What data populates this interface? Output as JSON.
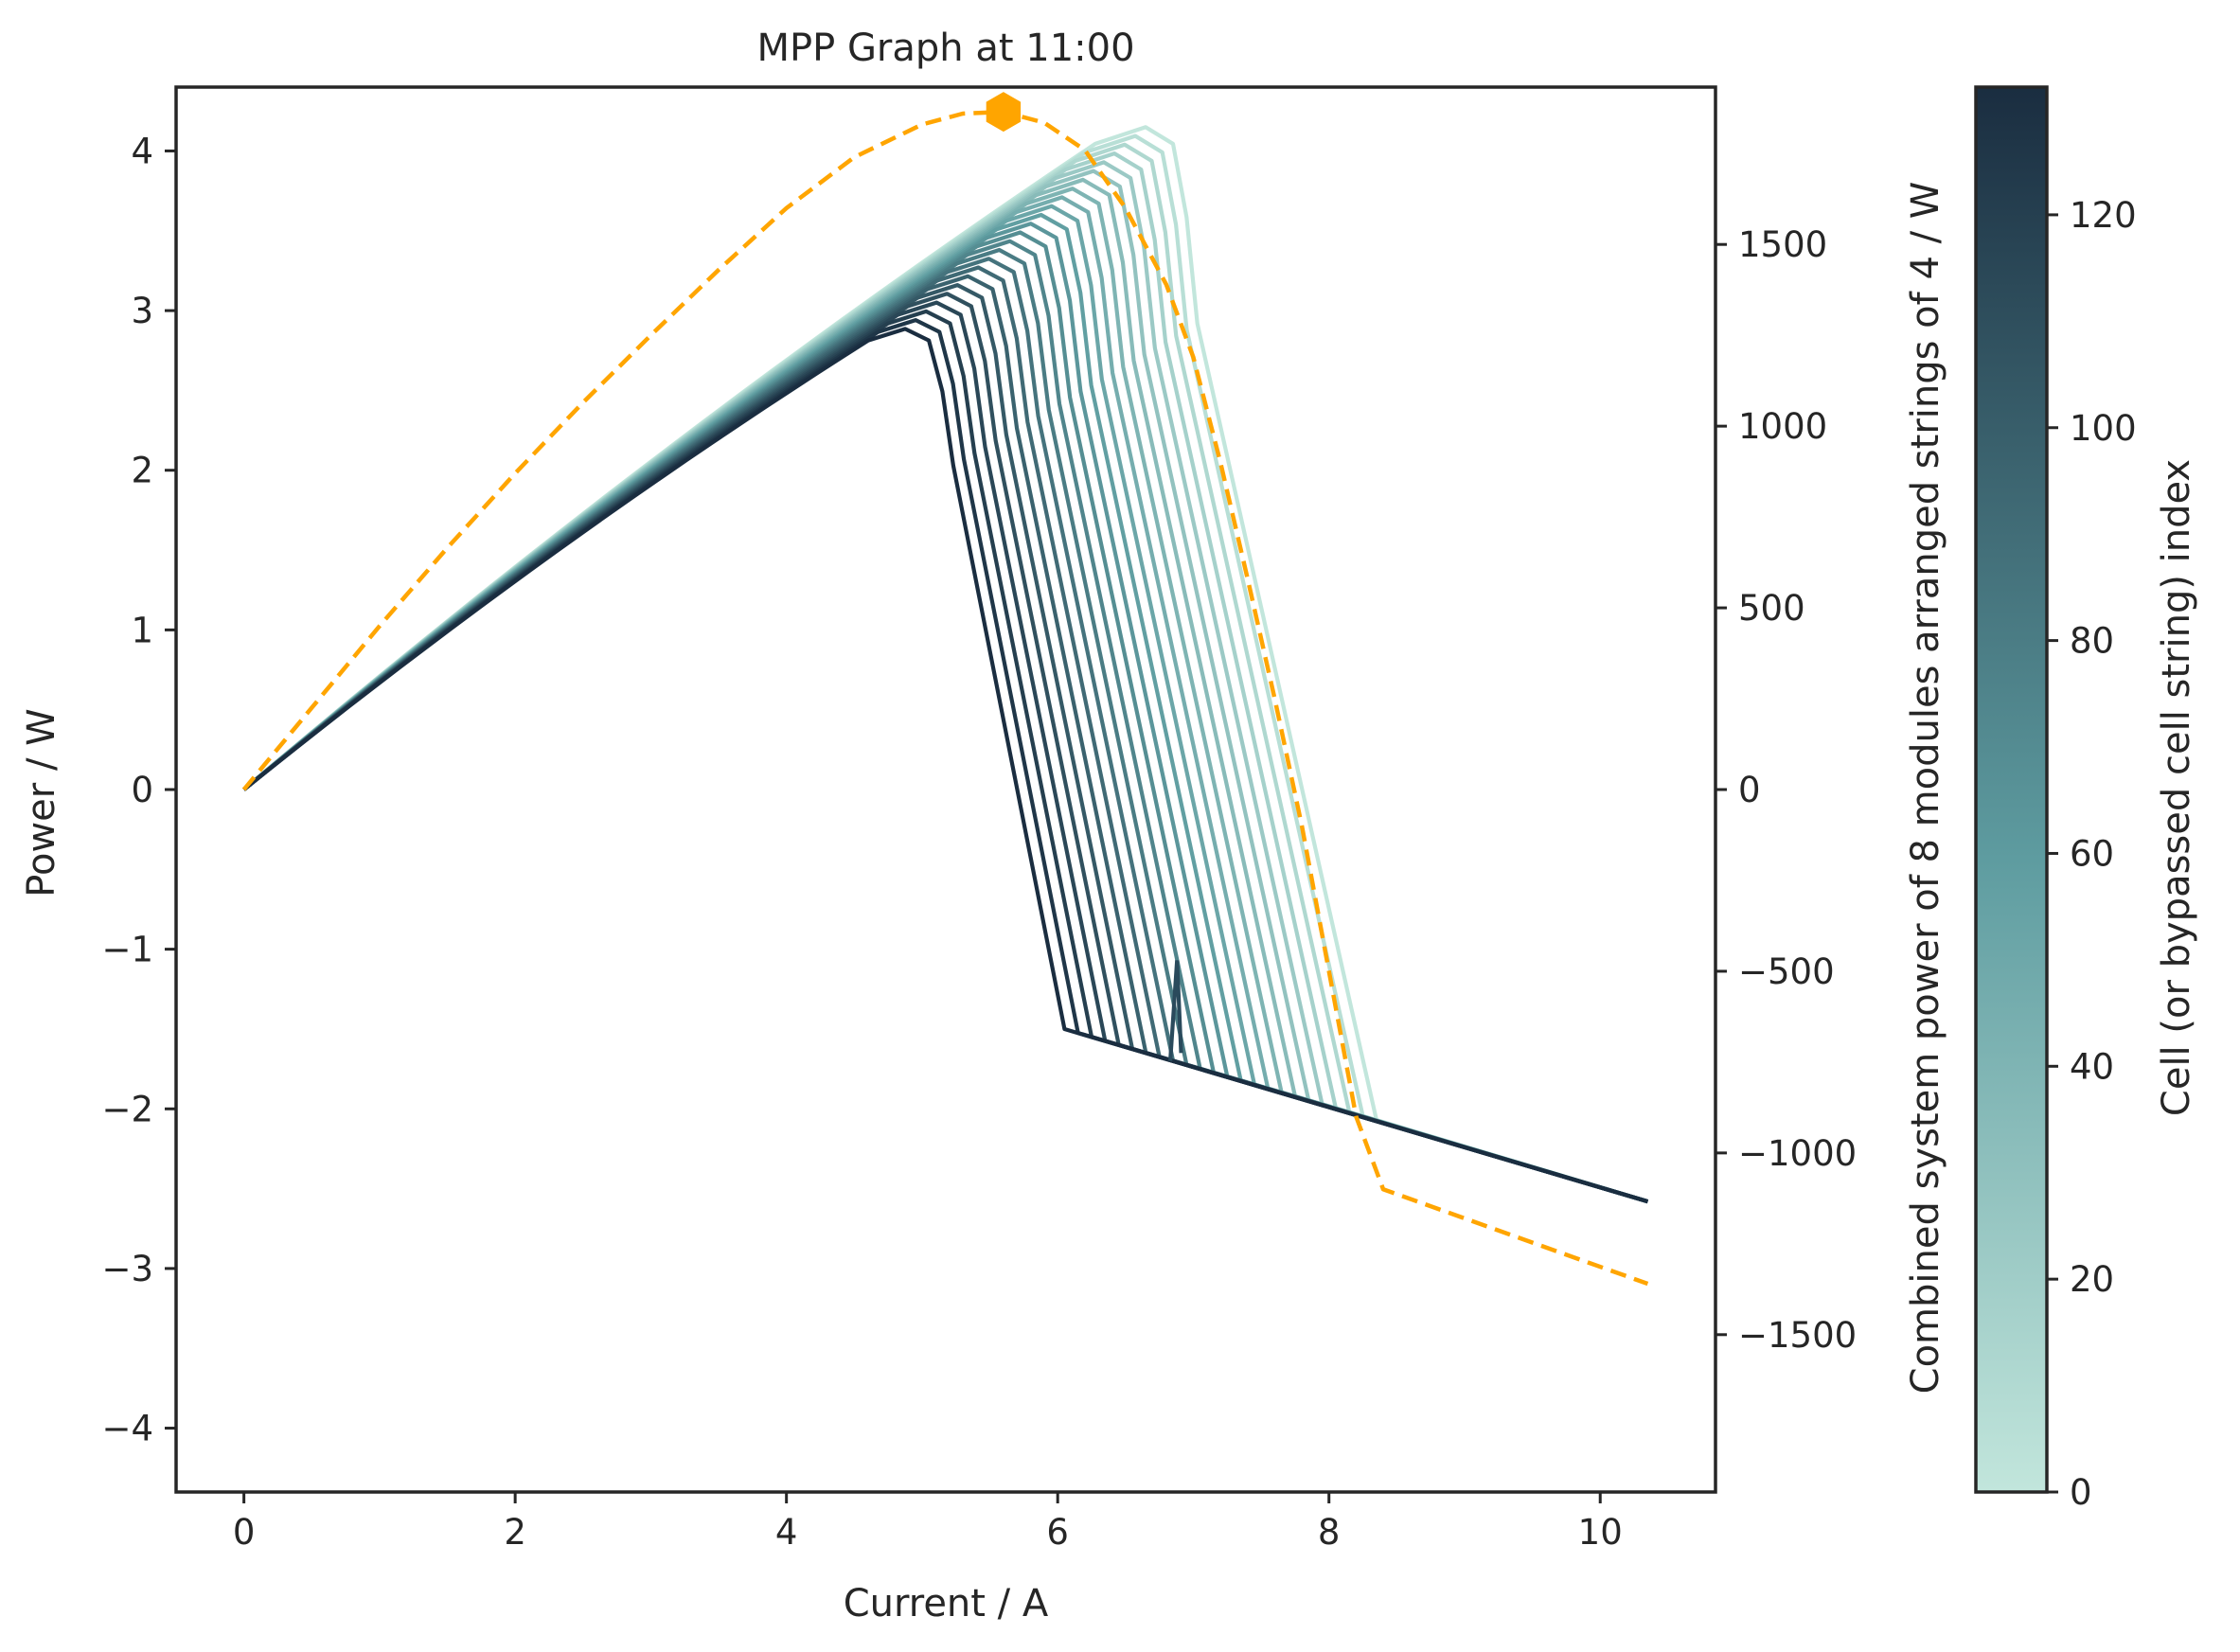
{
  "chart_data": {
    "type": "line",
    "title": "MPP Graph at 11:00",
    "xlabel": "Current / A",
    "ylabel": "Power / W",
    "y2label": "Combined system power of 8 modules arranged strings of 4 / W",
    "colorbar_label": "Cell (or bypassed cell string) index",
    "xlim": [
      -0.5,
      10.85
    ],
    "ylim": [
      -4.4,
      4.4
    ],
    "y2lim": [
      -1933,
      1933
    ],
    "colorbar_lim": [
      0,
      132
    ],
    "xticks": [
      0,
      2,
      4,
      6,
      8,
      10
    ],
    "yticks": [
      -4,
      -3,
      -2,
      -1,
      0,
      1,
      2,
      3,
      4
    ],
    "y2ticks": [
      -1500,
      -1000,
      -500,
      0,
      500,
      1000,
      1500
    ],
    "colorbar_ticks": [
      0,
      20,
      40,
      60,
      80,
      100,
      120
    ],
    "xtick_labels": [
      "0",
      "2",
      "4",
      "6",
      "8",
      "10"
    ],
    "ytick_labels": [
      "−4",
      "−3",
      "−2",
      "−1",
      "0",
      "1",
      "2",
      "3",
      "4"
    ],
    "y2tick_labels": [
      "−1500",
      "−1000",
      "−500",
      "0",
      "500",
      "1000",
      "1500"
    ],
    "colorbar_tick_labels": [
      "0",
      "20",
      "40",
      "60",
      "80",
      "100",
      "120"
    ],
    "colormap": {
      "low": "#c2e6dc",
      "mid": "#5e9ca0",
      "high": "#1a2d40"
    },
    "cell_curves": {
      "count": 24,
      "index_range": [
        0,
        132
      ],
      "common_tail": {
        "x": [
          8.1,
          10.35
        ],
        "y": [
          -2.02,
          -2.58
        ]
      },
      "curves": [
        {
          "peak_x": 6.75,
          "peak_y": 4.17,
          "drop_x": 8.35,
          "drop_y": -2.07
        },
        {
          "peak_x": 4.95,
          "peak_y": 2.9,
          "drop_x": 6.05,
          "drop_y": -1.5
        }
      ],
      "spike": {
        "x": 6.88,
        "base_y": -1.7,
        "top_y": -1.07
      }
    },
    "system_curve": {
      "name": "Combined system power",
      "color": "#ffa500",
      "style": "dashed",
      "x": [
        0,
        0.5,
        1,
        1.5,
        2,
        2.5,
        3,
        3.5,
        4,
        4.5,
        5,
        5.3,
        5.6,
        5.9,
        6.2,
        6.5,
        6.8,
        7.0,
        7.2,
        7.4,
        7.6,
        7.8,
        8.0,
        8.2,
        8.4,
        9.0,
        10.35
      ],
      "y": [
        0,
        225,
        450,
        665,
        870,
        1065,
        1250,
        1430,
        1600,
        1740,
        1830,
        1860,
        1865,
        1835,
        1760,
        1600,
        1390,
        1190,
        900,
        580,
        250,
        -100,
        -500,
        -900,
        -1100,
        -1180,
        -1360
      ]
    },
    "mpp_marker": {
      "x": 5.6,
      "y": 1865,
      "shape": "hexagon",
      "color": "#ffa500"
    }
  }
}
